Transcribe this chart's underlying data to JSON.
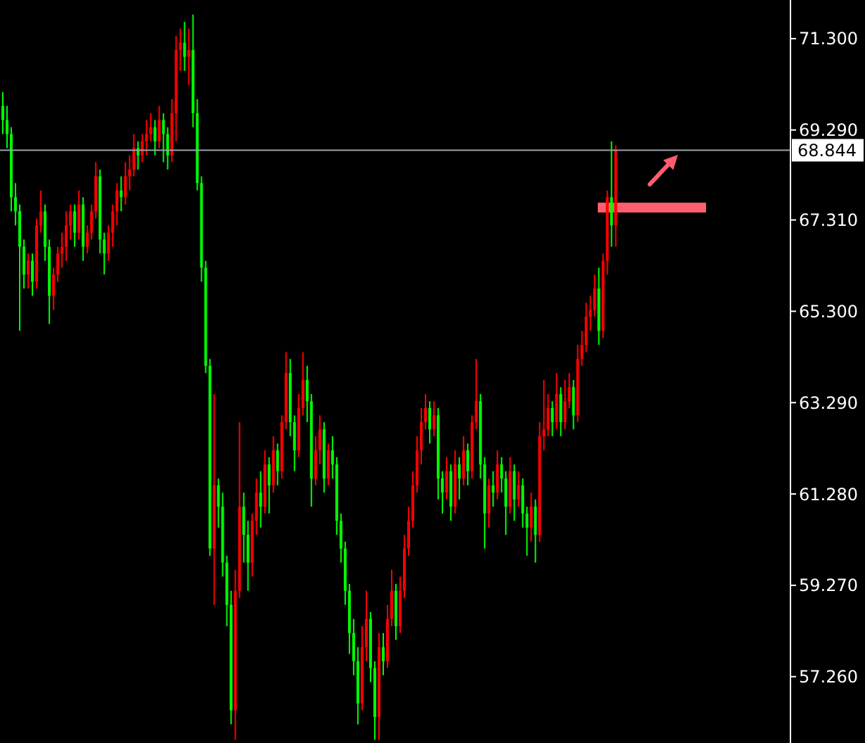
{
  "chart_data": {
    "type": "candlestick",
    "categories": [
      null,
      null,
      null,
      null,
      null,
      null,
      null,
      null,
      null,
      null,
      null,
      null,
      null,
      null,
      null,
      null,
      null,
      null,
      null,
      null,
      null,
      null,
      null,
      null,
      null,
      null,
      null,
      null,
      null,
      null,
      null,
      null,
      null,
      null,
      null,
      null,
      null,
      null,
      null,
      null,
      null,
      null,
      null,
      null,
      null,
      null,
      null,
      null,
      null,
      null,
      null,
      null,
      null,
      null,
      null,
      null,
      null,
      null,
      null,
      null,
      null,
      null,
      null,
      null,
      null,
      null,
      null,
      null,
      null,
      null,
      null,
      null,
      null,
      null,
      null,
      null,
      null,
      null,
      null,
      null,
      null,
      null,
      null,
      null,
      null,
      null,
      null,
      null,
      null,
      null,
      null,
      null,
      null,
      null,
      null,
      null,
      null,
      null,
      null,
      null,
      null,
      null,
      null,
      null,
      null,
      null,
      null,
      null,
      null,
      null,
      null,
      null,
      null,
      null,
      null,
      null,
      null,
      null,
      null,
      null,
      null,
      null,
      null,
      null,
      null,
      null,
      null,
      null,
      null,
      null,
      null,
      null,
      null,
      null,
      null,
      null,
      null,
      null,
      null,
      null,
      null,
      null,
      null,
      null,
      null,
      null,
      null,
      null,
      null,
      null,
      null,
      null,
      null,
      null,
      null,
      null,
      null,
      null,
      null,
      null,
      null,
      null,
      null,
      null,
      null,
      null,
      null,
      null,
      null,
      null,
      null,
      null,
      null,
      null,
      null,
      null,
      null,
      null,
      null,
      null,
      null,
      null,
      null,
      null,
      null,
      null,
      null
    ],
    "ohlc": [
      [
        69.82,
        70.12,
        69.2,
        69.51
      ],
      [
        69.51,
        69.82,
        68.89,
        69.2
      ],
      [
        69.2,
        69.35,
        67.5,
        67.81
      ],
      [
        67.81,
        68.12,
        67.19,
        67.5
      ],
      [
        67.5,
        67.65,
        64.87,
        66.72
      ],
      [
        66.72,
        66.88,
        65.8,
        66.11
      ],
      [
        66.11,
        66.57,
        65.8,
        66.41
      ],
      [
        66.41,
        66.57,
        65.64,
        65.95
      ],
      [
        65.95,
        67.34,
        65.8,
        67.19
      ],
      [
        67.19,
        67.96,
        67.03,
        67.5
      ],
      [
        67.5,
        67.65,
        66.41,
        66.72
      ],
      [
        66.72,
        66.88,
        65.02,
        65.64
      ],
      [
        65.64,
        66.26,
        65.33,
        66.11
      ],
      [
        66.11,
        66.72,
        65.95,
        66.57
      ],
      [
        66.57,
        67.03,
        66.26,
        66.72
      ],
      [
        66.72,
        67.5,
        66.41,
        67.19
      ],
      [
        67.19,
        67.65,
        66.88,
        67.5
      ],
      [
        67.5,
        67.65,
        66.72,
        67.03
      ],
      [
        67.03,
        67.96,
        66.88,
        67.65
      ],
      [
        67.65,
        67.81,
        66.41,
        66.72
      ],
      [
        66.72,
        67.19,
        66.57,
        67.03
      ],
      [
        67.03,
        67.65,
        66.88,
        67.5
      ],
      [
        67.5,
        68.58,
        67.34,
        68.27
      ],
      [
        68.27,
        68.42,
        66.57,
        66.88
      ],
      [
        66.88,
        67.03,
        66.11,
        66.57
      ],
      [
        66.57,
        67.19,
        66.41,
        67.03
      ],
      [
        67.03,
        67.65,
        66.72,
        67.5
      ],
      [
        67.5,
        68.12,
        67.19,
        67.96
      ],
      [
        67.96,
        68.27,
        67.5,
        67.81
      ],
      [
        67.81,
        68.58,
        67.65,
        68.27
      ],
      [
        68.27,
        68.73,
        67.96,
        68.42
      ],
      [
        68.42,
        69.2,
        68.27,
        68.89
      ],
      [
        68.89,
        69.04,
        68.42,
        68.73
      ],
      [
        68.73,
        69.2,
        68.58,
        69.04
      ],
      [
        69.04,
        69.51,
        68.73,
        69.2
      ],
      [
        69.2,
        69.66,
        69.04,
        69.35
      ],
      [
        69.35,
        69.51,
        68.73,
        69.04
      ],
      [
        69.04,
        69.82,
        68.89,
        69.51
      ],
      [
        69.51,
        69.66,
        68.58,
        69.2
      ],
      [
        69.2,
        69.35,
        68.42,
        68.73
      ],
      [
        68.73,
        69.97,
        68.58,
        69.66
      ],
      [
        69.66,
        71.36,
        69.04,
        71.05
      ],
      [
        71.05,
        71.52,
        70.59,
        71.21
      ],
      [
        71.21,
        71.67,
        70.59,
        70.9
      ],
      [
        70.9,
        71.52,
        70.28,
        71.05
      ],
      [
        71.05,
        71.83,
        69.35,
        69.66
      ],
      [
        69.66,
        69.97,
        67.96,
        68.12
      ],
      [
        68.12,
        68.27,
        65.95,
        66.26
      ],
      [
        66.26,
        66.41,
        63.94,
        64.1
      ],
      [
        64.1,
        64.25,
        59.92,
        60.08
      ],
      [
        60.08,
        63.48,
        58.84,
        61.47
      ],
      [
        61.47,
        61.62,
        60.54,
        61.0
      ],
      [
        61.0,
        61.31,
        59.46,
        59.77
      ],
      [
        59.77,
        59.92,
        58.37,
        58.84
      ],
      [
        58.84,
        59.15,
        56.21,
        56.52
      ],
      [
        56.52,
        59.61,
        55.87,
        59.15
      ],
      [
        59.15,
        62.86,
        58.99,
        61.0
      ],
      [
        61.0,
        61.31,
        59.77,
        60.38
      ],
      [
        60.38,
        60.69,
        59.15,
        59.77
      ],
      [
        59.77,
        60.85,
        59.46,
        60.69
      ],
      [
        60.69,
        61.62,
        60.38,
        61.31
      ],
      [
        61.31,
        61.78,
        60.54,
        61.0
      ],
      [
        61.0,
        62.24,
        60.85,
        61.93
      ],
      [
        61.93,
        62.09,
        60.85,
        61.47
      ],
      [
        61.47,
        62.55,
        61.31,
        62.24
      ],
      [
        62.24,
        62.39,
        61.47,
        61.78
      ],
      [
        61.78,
        63.01,
        61.62,
        62.86
      ],
      [
        62.86,
        64.4,
        62.7,
        63.94
      ],
      [
        63.94,
        64.25,
        62.55,
        62.86
      ],
      [
        62.86,
        63.01,
        61.78,
        62.24
      ],
      [
        62.24,
        63.48,
        62.09,
        63.17
      ],
      [
        63.17,
        64.4,
        63.01,
        63.79
      ],
      [
        63.79,
        64.1,
        62.86,
        63.32
      ],
      [
        63.32,
        63.48,
        61.0,
        61.62
      ],
      [
        61.62,
        62.55,
        61.47,
        62.24
      ],
      [
        62.24,
        63.01,
        61.93,
        62.7
      ],
      [
        62.7,
        62.86,
        61.31,
        61.62
      ],
      [
        61.62,
        62.39,
        61.47,
        62.24
      ],
      [
        62.24,
        62.55,
        61.62,
        61.93
      ],
      [
        61.93,
        62.09,
        60.38,
        60.69
      ],
      [
        60.69,
        60.85,
        59.77,
        60.08
      ],
      [
        60.08,
        60.23,
        58.84,
        59.15
      ],
      [
        59.15,
        59.3,
        57.76,
        58.22
      ],
      [
        58.22,
        58.53,
        57.29,
        57.6
      ],
      [
        57.6,
        57.91,
        56.21,
        56.67
      ],
      [
        56.67,
        58.37,
        56.52,
        57.91
      ],
      [
        57.91,
        59.15,
        57.6,
        58.53
      ],
      [
        58.53,
        58.68,
        57.14,
        57.45
      ],
      [
        57.45,
        57.6,
        55.87,
        56.37
      ],
      [
        56.37,
        58.22,
        55.87,
        57.91
      ],
      [
        57.91,
        58.22,
        57.29,
        57.6
      ],
      [
        57.6,
        58.84,
        57.45,
        58.53
      ],
      [
        58.53,
        59.61,
        58.37,
        59.15
      ],
      [
        59.15,
        59.3,
        58.07,
        58.37
      ],
      [
        58.37,
        59.46,
        58.22,
        59.15
      ],
      [
        59.15,
        60.38,
        58.99,
        60.08
      ],
      [
        60.08,
        61.0,
        59.92,
        60.69
      ],
      [
        60.69,
        61.78,
        60.54,
        61.47
      ],
      [
        61.47,
        62.55,
        61.31,
        62.24
      ],
      [
        62.24,
        63.17,
        61.93,
        62.86
      ],
      [
        62.86,
        63.48,
        62.7,
        63.17
      ],
      [
        63.17,
        63.32,
        62.39,
        62.7
      ],
      [
        62.7,
        63.32,
        62.55,
        63.01
      ],
      [
        63.01,
        63.17,
        61.16,
        61.62
      ],
      [
        61.62,
        61.78,
        60.85,
        61.31
      ],
      [
        61.31,
        62.09,
        61.16,
        61.78
      ],
      [
        61.78,
        61.93,
        60.69,
        61.0
      ],
      [
        61.0,
        62.24,
        60.85,
        61.93
      ],
      [
        61.93,
        62.09,
        61.16,
        61.62
      ],
      [
        61.62,
        62.55,
        61.47,
        62.24
      ],
      [
        62.24,
        62.39,
        61.47,
        61.78
      ],
      [
        61.78,
        63.01,
        61.62,
        62.86
      ],
      [
        62.86,
        64.25,
        62.7,
        63.32
      ],
      [
        63.32,
        63.48,
        61.62,
        61.93
      ],
      [
        61.93,
        62.09,
        60.08,
        60.85
      ],
      [
        60.85,
        61.62,
        60.54,
        61.47
      ],
      [
        61.47,
        61.78,
        61.0,
        61.31
      ],
      [
        61.31,
        62.24,
        61.16,
        61.93
      ],
      [
        61.93,
        62.09,
        61.31,
        61.62
      ],
      [
        61.62,
        61.78,
        60.38,
        61.0
      ],
      [
        61.0,
        62.09,
        60.85,
        61.78
      ],
      [
        61.78,
        61.93,
        60.69,
        61.16
      ],
      [
        61.16,
        61.78,
        61.0,
        61.47
      ],
      [
        61.47,
        61.62,
        60.54,
        60.85
      ],
      [
        60.85,
        61.0,
        59.92,
        60.54
      ],
      [
        60.54,
        61.31,
        60.23,
        61.0
      ],
      [
        61.0,
        61.16,
        59.77,
        60.38
      ],
      [
        60.38,
        62.86,
        60.23,
        62.55
      ],
      [
        62.55,
        63.79,
        62.24,
        62.7
      ],
      [
        62.7,
        63.48,
        62.55,
        63.17
      ],
      [
        63.17,
        63.32,
        62.55,
        62.86
      ],
      [
        62.86,
        63.94,
        62.7,
        63.48
      ],
      [
        63.48,
        63.63,
        62.55,
        62.86
      ],
      [
        62.86,
        63.79,
        62.7,
        63.32
      ],
      [
        63.32,
        63.94,
        63.17,
        63.63
      ],
      [
        63.63,
        63.79,
        62.7,
        63.01
      ],
      [
        63.01,
        64.56,
        62.86,
        64.25
      ],
      [
        64.25,
        64.87,
        64.1,
        64.56
      ],
      [
        64.56,
        65.49,
        64.4,
        65.18
      ],
      [
        65.18,
        65.64,
        64.87,
        65.33
      ],
      [
        65.33,
        66.11,
        65.18,
        65.8
      ],
      [
        65.8,
        66.26,
        64.56,
        64.87
      ],
      [
        64.87,
        66.57,
        64.71,
        66.41
      ],
      [
        66.41,
        67.96,
        66.11,
        67.81
      ],
      [
        67.81,
        69.04,
        66.72,
        67.19
      ],
      [
        67.19,
        68.95,
        66.72,
        68.84
      ],
      null,
      null,
      null,
      null,
      null,
      null,
      null,
      null,
      null,
      null,
      null,
      null,
      null,
      null,
      null,
      null,
      null,
      null,
      null,
      null,
      null,
      null,
      null,
      null,
      null,
      null,
      null,
      null,
      null,
      null,
      null,
      null,
      null,
      null,
      null,
      null,
      null,
      null,
      null,
      null,
      null
    ],
    "colors": [
      "#00ff00",
      "#00ff00",
      "#00ff00",
      "#00ff00",
      "#00ff00",
      "#00ff00",
      "#ff0000",
      "#00ff00",
      "#ff0000",
      "#ff0000",
      "#00ff00",
      "#00ff00",
      "#ff0000",
      "#ff0000",
      "#ff0000",
      "#ff0000",
      "#ff0000",
      "#00ff00",
      "#ff0000",
      "#00ff00",
      "#ff0000",
      "#ff0000",
      "#ff0000",
      "#00ff00",
      "#00ff00",
      "#ff0000",
      "#ff0000",
      "#ff0000",
      "#00ff00",
      "#ff0000",
      "#ff0000",
      "#ff0000",
      "#00ff00",
      "#ff0000",
      "#ff0000",
      "#ff0000",
      "#00ff00",
      "#ff0000",
      "#00ff00",
      "#00ff00",
      "#ff0000",
      "#ff0000",
      "#ff0000",
      "#00ff00",
      "#ff0000",
      "#00ff00",
      "#00ff00",
      "#00ff00",
      "#00ff00",
      "#00ff00",
      "#ff0000",
      "#00ff00",
      "#00ff00",
      "#00ff00",
      "#00ff00",
      "#ff0000",
      "#ff0000",
      "#00ff00",
      "#00ff00",
      "#ff0000",
      "#ff0000",
      "#00ff00",
      "#ff0000",
      "#00ff00",
      "#ff0000",
      "#00ff00",
      "#ff0000",
      "#ff0000",
      "#00ff00",
      "#00ff00",
      "#ff0000",
      "#ff0000",
      "#00ff00",
      "#00ff00",
      "#ff0000",
      "#ff0000",
      "#00ff00",
      "#ff0000",
      "#00ff00",
      "#00ff00",
      "#00ff00",
      "#00ff00",
      "#00ff00",
      "#00ff00",
      "#00ff00",
      "#ff0000",
      "#ff0000",
      "#00ff00",
      "#00ff00",
      "#ff0000",
      "#00ff00",
      "#ff0000",
      "#ff0000",
      "#00ff00",
      "#ff0000",
      "#ff0000",
      "#ff0000",
      "#ff0000",
      "#ff0000",
      "#ff0000",
      "#ff0000",
      "#00ff00",
      "#ff0000",
      "#00ff00",
      "#00ff00",
      "#ff0000",
      "#00ff00",
      "#ff0000",
      "#00ff00",
      "#ff0000",
      "#00ff00",
      "#ff0000",
      "#ff0000",
      "#00ff00",
      "#00ff00",
      "#ff0000",
      "#00ff00",
      "#ff0000",
      "#00ff00",
      "#00ff00",
      "#ff0000",
      "#00ff00",
      "#ff0000",
      "#00ff00",
      "#00ff00",
      "#ff0000",
      "#00ff00",
      "#ff0000",
      "#ff0000",
      "#ff0000",
      "#00ff00",
      "#ff0000",
      "#00ff00",
      "#ff0000",
      "#ff0000",
      "#00ff00",
      "#ff0000",
      "#ff0000",
      "#ff0000",
      "#ff0000",
      "#ff0000",
      "#00ff00",
      "#ff0000",
      "#ff0000",
      "#00ff00",
      "#ff0000",
      null,
      null,
      null,
      null,
      null,
      null,
      null,
      null,
      null,
      null,
      null,
      null,
      null,
      null,
      null,
      null,
      null,
      null,
      null,
      null,
      null,
      null,
      null,
      null,
      null,
      null,
      null,
      null,
      null,
      null,
      null,
      null,
      null,
      null,
      null,
      null,
      null,
      null,
      null,
      null,
      null
    ],
    "ylim": [
      55.8,
      72.15
    ],
    "yticks": [
      {
        "value": 57.26,
        "label": "57.260"
      },
      {
        "value": 59.27,
        "label": "59.270"
      },
      {
        "value": 61.28,
        "label": "61.280"
      },
      {
        "value": 63.29,
        "label": "63.290"
      },
      {
        "value": 65.3,
        "label": "65.300"
      },
      {
        "value": 67.31,
        "label": "67.310"
      },
      {
        "value": 69.29,
        "label": "69.290"
      },
      {
        "value": 71.3,
        "label": "71.300"
      }
    ],
    "ref_lines": [
      {
        "axis": "y",
        "value": 68.844,
        "label": "68.844",
        "color": "#9aa3ad"
      }
    ],
    "tick_labels": "y"
  }
}
